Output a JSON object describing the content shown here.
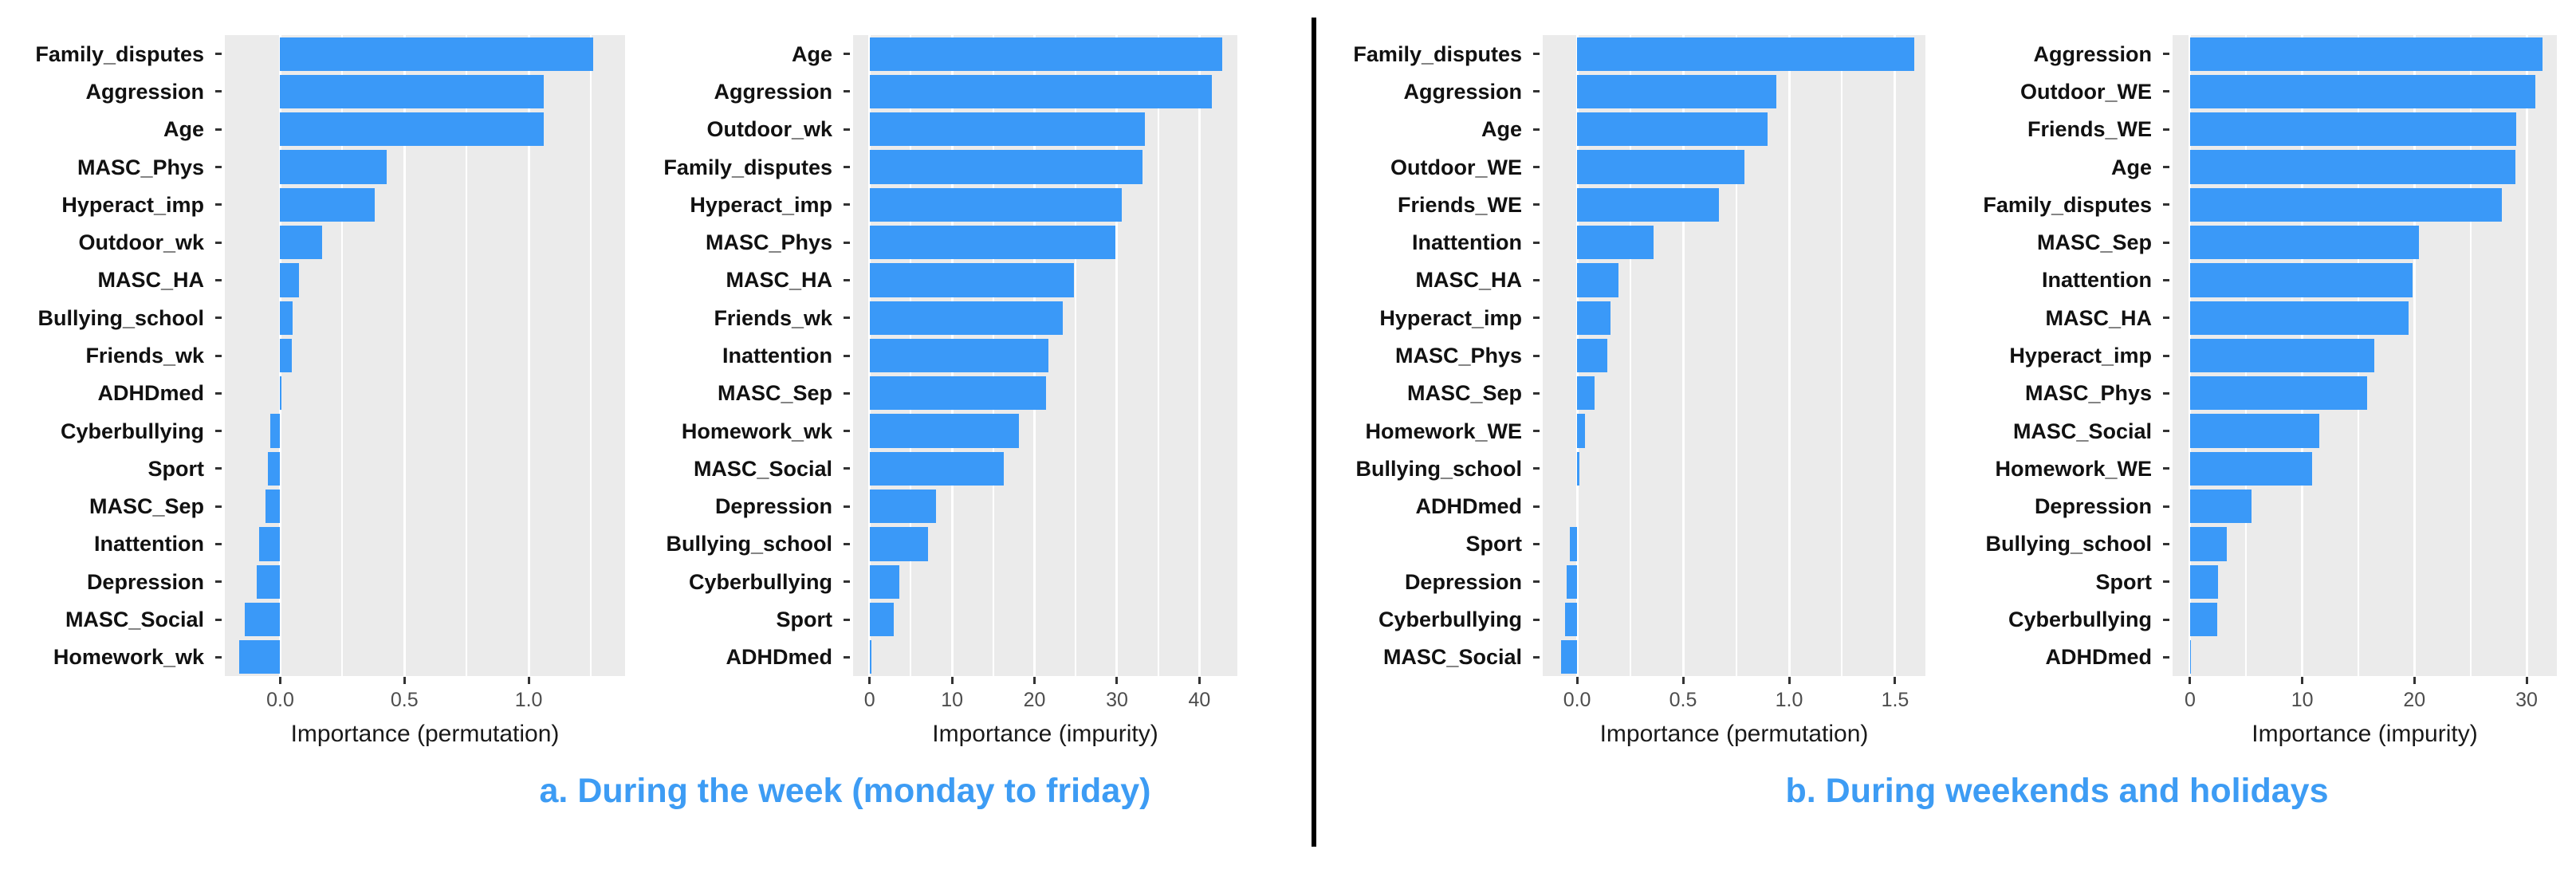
{
  "figure": {
    "captions": {
      "a": "a. During the week (monday to friday)",
      "b": "b. During weekends and holidays"
    },
    "colors": {
      "bar_fill": "#3A99F8",
      "panel_background": "#EBEBEB",
      "gridline": "#FFFFFF",
      "caption_blue": "#3D9CF4",
      "axis_tick_text": "#4D4D4D",
      "category_label_text": "#111111",
      "divider": "#000000"
    }
  },
  "chart_data": [
    {
      "id": "week-permutation",
      "type": "bar",
      "orientation": "horizontal",
      "xlabel": "Importance (permutation)",
      "xlim": [
        -0.223,
        1.388
      ],
      "xticks": [
        0.0,
        0.5,
        1.0
      ],
      "xtick_labels": [
        "0.0",
        "0.5",
        "1.0"
      ],
      "grid": true,
      "categories": [
        "Family_disputes",
        "Aggression",
        "Age",
        "MASC_Phys",
        "Hyperact_imp",
        "Outdoor_wk",
        "MASC_HA",
        "Bullying_school",
        "Friends_wk",
        "ADHDmed",
        "Cyberbullying",
        "Sport",
        "MASC_Sep",
        "Inattention",
        "Depression",
        "MASC_Social",
        "Homework_wk"
      ],
      "values": [
        1.26,
        1.06,
        1.06,
        0.43,
        0.38,
        0.17,
        0.074,
        0.05,
        0.045,
        0.005,
        -0.041,
        -0.05,
        -0.058,
        -0.085,
        -0.095,
        -0.144,
        -0.165
      ]
    },
    {
      "id": "week-impurity",
      "type": "bar",
      "orientation": "horizontal",
      "xlabel": "Importance (impurity)",
      "xlim": [
        -2.0,
        44.6
      ],
      "xticks": [
        0,
        10,
        20,
        30,
        40
      ],
      "xtick_labels": [
        "0",
        "10",
        "20",
        "30",
        "40"
      ],
      "grid": true,
      "categories": [
        "Age",
        "Aggression",
        "Outdoor_wk",
        "Family_disputes",
        "Hyperact_imp",
        "MASC_Phys",
        "MASC_HA",
        "Friends_wk",
        "Inattention",
        "MASC_Sep",
        "Homework_wk",
        "MASC_Social",
        "Depression",
        "Bullying_school",
        "Cyberbullying",
        "Sport",
        "ADHDmed"
      ],
      "values": [
        42.8,
        41.5,
        33.4,
        33.1,
        30.6,
        29.8,
        24.8,
        23.4,
        21.7,
        21.4,
        18.1,
        16.3,
        8.1,
        7.1,
        3.6,
        2.9,
        0.2
      ]
    },
    {
      "id": "weekend-permutation",
      "type": "bar",
      "orientation": "horizontal",
      "xlabel": "Importance (permutation)",
      "xlim": [
        -0.162,
        1.643
      ],
      "xticks": [
        0.0,
        0.5,
        1.0,
        1.5
      ],
      "xtick_labels": [
        "0.0",
        "0.5",
        "1.0",
        "1.5"
      ],
      "grid": true,
      "categories": [
        "Family_disputes",
        "Aggression",
        "Age",
        "Outdoor_WE",
        "Friends_WE",
        "Inattention",
        "MASC_HA",
        "Hyperact_imp",
        "MASC_Phys",
        "MASC_Sep",
        "Homework_WE",
        "Bullying_school",
        "ADHDmed",
        "Sport",
        "Depression",
        "Cyberbullying",
        "MASC_Social"
      ],
      "values": [
        1.59,
        0.94,
        0.9,
        0.79,
        0.67,
        0.36,
        0.196,
        0.157,
        0.141,
        0.082,
        0.039,
        0.01,
        0.0,
        -0.035,
        -0.049,
        -0.055,
        -0.075
      ]
    },
    {
      "id": "weekend-impurity",
      "type": "bar",
      "orientation": "horizontal",
      "xlabel": "Importance (impurity)",
      "xlim": [
        -1.56,
        32.7
      ],
      "xticks": [
        0,
        10,
        20,
        30
      ],
      "xtick_labels": [
        "0",
        "10",
        "20",
        "30"
      ],
      "grid": true,
      "categories": [
        "Aggression",
        "Outdoor_WE",
        "Friends_WE",
        "Age",
        "Family_disputes",
        "MASC_Sep",
        "Inattention",
        "MASC_HA",
        "Hyperact_imp",
        "MASC_Phys",
        "MASC_Social",
        "Homework_WE",
        "Depression",
        "Bullying_school",
        "Sport",
        "Cyberbullying",
        "ADHDmed"
      ],
      "values": [
        31.4,
        30.8,
        29.1,
        29.0,
        27.8,
        20.4,
        19.8,
        19.5,
        16.4,
        15.8,
        11.5,
        10.9,
        5.5,
        3.3,
        2.5,
        2.4,
        0.1
      ]
    }
  ]
}
